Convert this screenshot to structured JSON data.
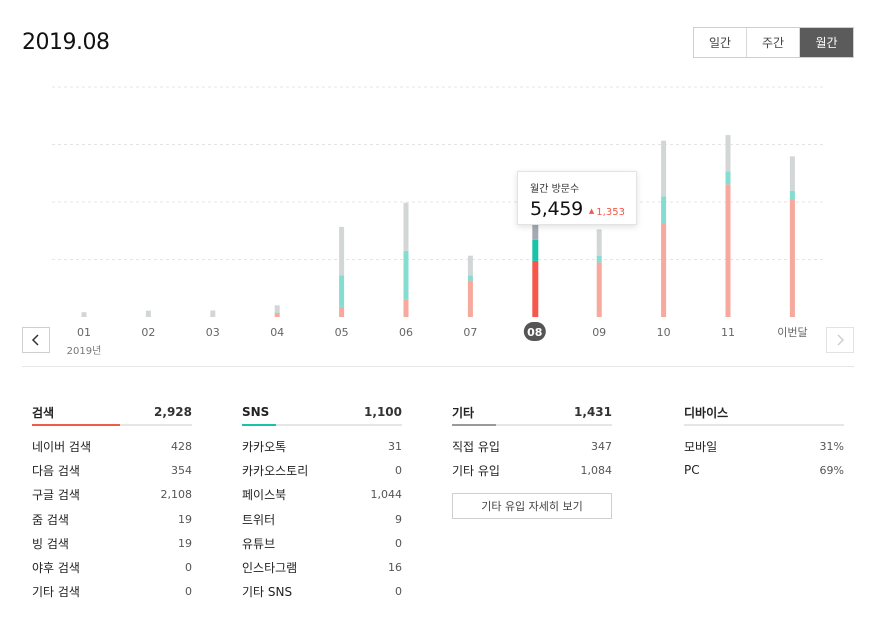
{
  "header": {
    "title": "2019.08"
  },
  "period_toggle": {
    "options": [
      "일간",
      "주간",
      "월간"
    ],
    "active_index": 2
  },
  "colors": {
    "search": "#f6a99c",
    "search_active": "#f5584b",
    "sns": "#84ddd0",
    "sns_active": "#19c3a7",
    "other": "#d3d6d6",
    "other_active": "#a3aab4",
    "grid": "#e4e4e4",
    "accent_search": "#ef5a4b",
    "accent_sns": "#19c3a7",
    "accent_other": "#9a9a9a"
  },
  "chart_data": {
    "type": "bar",
    "stacked": true,
    "categories": [
      "01",
      "02",
      "03",
      "04",
      "05",
      "06",
      "07",
      "08",
      "09",
      "10",
      "11",
      "이번달"
    ],
    "year_label": "2019년",
    "selected_index": 7,
    "series": [
      {
        "key": "search",
        "values": [
          0,
          0,
          0,
          180,
          530,
          930,
          1900,
          2928,
          2850,
          4910,
          6920,
          6130
        ]
      },
      {
        "key": "sns",
        "values": [
          0,
          0,
          0,
          50,
          1650,
          2520,
          270,
          1100,
          340,
          1380,
          670,
          460
        ]
      },
      {
        "key": "other",
        "values": [
          250,
          330,
          340,
          380,
          2520,
          2510,
          1030,
          1431,
          1380,
          2910,
          1900,
          1790
        ]
      }
    ],
    "ylim": [
      0,
      12000
    ],
    "grid": true,
    "gridlines": [
      3000,
      6000,
      9000
    ]
  },
  "nav": {
    "prev_icon": "chevron-left-icon",
    "next_icon": "chevron-right-icon"
  },
  "tooltip": {
    "label": "월간 방문수",
    "value": "5,459",
    "delta": "1,353",
    "delta_icon": "triangle-up-icon"
  },
  "stats": {
    "search": {
      "title": "검색",
      "total": "2,928",
      "items": [
        {
          "label": "네이버 검색",
          "value": "428"
        },
        {
          "label": "다음 검색",
          "value": "354"
        },
        {
          "label": "구글 검색",
          "value": "2,108"
        },
        {
          "label": "줌 검색",
          "value": "19"
        },
        {
          "label": "빙 검색",
          "value": "19"
        },
        {
          "label": "야후 검색",
          "value": "0"
        },
        {
          "label": "기타 검색",
          "value": "0"
        }
      ]
    },
    "sns": {
      "title": "SNS",
      "total": "1,100",
      "items": [
        {
          "label": "카카오톡",
          "value": "31"
        },
        {
          "label": "카카오스토리",
          "value": "0"
        },
        {
          "label": "페이스북",
          "value": "1,044"
        },
        {
          "label": "트위터",
          "value": "9"
        },
        {
          "label": "유튜브",
          "value": "0"
        },
        {
          "label": "인스타그램",
          "value": "16"
        },
        {
          "label": "기타 SNS",
          "value": "0"
        }
      ]
    },
    "other": {
      "title": "기타",
      "total": "1,431",
      "items": [
        {
          "label": "직접 유입",
          "value": "347"
        },
        {
          "label": "기타 유입",
          "value": "1,084"
        }
      ],
      "detail_button": "기타 유입 자세히 보기"
    },
    "device": {
      "title": "디바이스",
      "items": [
        {
          "label": "모바일",
          "value": "31%"
        },
        {
          "label": "PC",
          "value": "69%"
        }
      ]
    }
  }
}
